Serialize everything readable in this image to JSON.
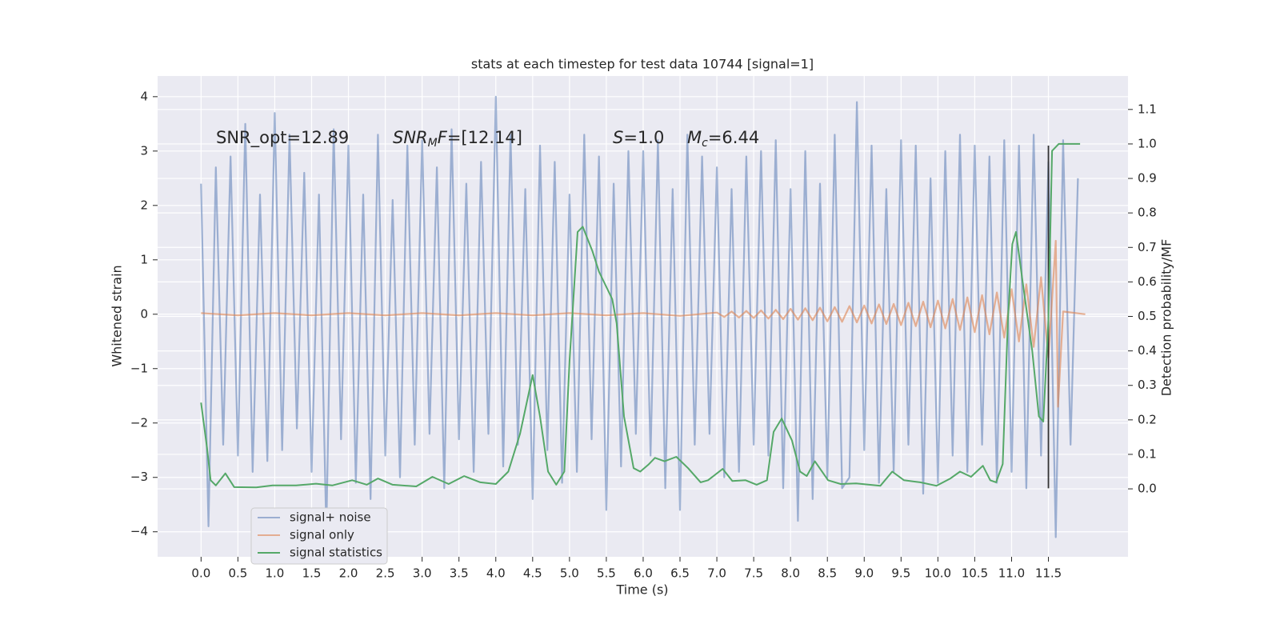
{
  "chart_data": {
    "type": "line",
    "title": "stats at each timestep for test data 10744 [signal=1]",
    "xlabel": "Time (s)",
    "ylabel": "Whitened strain",
    "y2label": "Detection probability/MF",
    "xlim": [
      -0.59,
      12.58
    ],
    "ylim": [
      -4.46,
      4.38
    ],
    "y2lim": [
      -0.197,
      1.197
    ],
    "xticks": [
      {
        "value": 0,
        "label": "0.0"
      },
      {
        "value": 0.5,
        "label": "0.5"
      },
      {
        "value": 1,
        "label": "1.0"
      },
      {
        "value": 1.5,
        "label": "1.5"
      },
      {
        "value": 2,
        "label": "2.0"
      },
      {
        "value": 2.5,
        "label": "2.5"
      },
      {
        "value": 3,
        "label": "3.0"
      },
      {
        "value": 3.5,
        "label": "3.5"
      },
      {
        "value": 4,
        "label": "4.0"
      },
      {
        "value": 4.5,
        "label": "4.5"
      },
      {
        "value": 5,
        "label": "5.0"
      },
      {
        "value": 5.5,
        "label": "5.5"
      },
      {
        "value": 6,
        "label": "6.0"
      },
      {
        "value": 6.5,
        "label": "6.5"
      },
      {
        "value": 7,
        "label": "7.0"
      },
      {
        "value": 7.5,
        "label": "7.5"
      },
      {
        "value": 8,
        "label": "8.0"
      },
      {
        "value": 8.5,
        "label": "8.5"
      },
      {
        "value": 9,
        "label": "9.0"
      },
      {
        "value": 9.5,
        "label": "9.5"
      },
      {
        "value": 10,
        "label": "10.0"
      },
      {
        "value": 10.5,
        "label": "10.5"
      },
      {
        "value": 11,
        "label": "11.0"
      },
      {
        "value": 11.5,
        "label": "11.5"
      }
    ],
    "yticks": [
      {
        "value": -4,
        "label": "−4"
      },
      {
        "value": -3,
        "label": "−3"
      },
      {
        "value": -2,
        "label": "−2"
      },
      {
        "value": -1,
        "label": "−1"
      },
      0,
      1,
      2,
      3,
      4
    ],
    "y2ticks": [
      {
        "value": 0,
        "label": "0.0"
      },
      {
        "value": 0.1,
        "label": "0.1"
      },
      {
        "value": 0.2,
        "label": "0.2"
      },
      {
        "value": 0.3,
        "label": "0.3"
      },
      {
        "value": 0.4,
        "label": "0.4"
      },
      {
        "value": 0.5,
        "label": "0.5"
      },
      {
        "value": 0.6,
        "label": "0.6"
      },
      {
        "value": 0.7,
        "label": "0.7"
      },
      {
        "value": 0.8,
        "label": "0.8"
      },
      {
        "value": 0.9,
        "label": "0.9"
      },
      {
        "value": 1,
        "label": "1.0"
      },
      {
        "value": 1.1,
        "label": "1.1"
      }
    ],
    "grid": true,
    "legend": "lower left",
    "series": [
      {
        "name": "signal+ noise",
        "color": "#4c72b0",
        "alpha": 0.5,
        "x": [
          0,
          0.1,
          0.2,
          0.3,
          0.4,
          0.5,
          0.6,
          0.7,
          0.8,
          0.9,
          1,
          1.1,
          1.2,
          1.3,
          1.4,
          1.5,
          1.6,
          1.7,
          1.8,
          1.9,
          2,
          2.1,
          2.2,
          2.3,
          2.4,
          2.5,
          2.6,
          2.7,
          2.8,
          2.9,
          3,
          3.1,
          3.2,
          3.3,
          3.4,
          3.5,
          3.6,
          3.7,
          3.8,
          3.9,
          4,
          4.1,
          4.2,
          4.3,
          4.4,
          4.5,
          4.6,
          4.7,
          4.8,
          4.9,
          5,
          5.1,
          5.2,
          5.3,
          5.4,
          5.5,
          5.6,
          5.7,
          5.8,
          5.9,
          6,
          6.1,
          6.2,
          6.3,
          6.4,
          6.5,
          6.6,
          6.7,
          6.8,
          6.9,
          7,
          7.1,
          7.2,
          7.3,
          7.4,
          7.5,
          7.6,
          7.7,
          7.8,
          7.9,
          8,
          8.1,
          8.2,
          8.3,
          8.4,
          8.5,
          8.6,
          8.7,
          8.8,
          8.9,
          9,
          9.1,
          9.2,
          9.3,
          9.4,
          9.5,
          9.6,
          9.7,
          9.8,
          9.9,
          10,
          10.1,
          10.2,
          10.3,
          10.4,
          10.5,
          10.6,
          10.7,
          10.8,
          10.9,
          11,
          11.1,
          11.2,
          11.3,
          11.4,
          11.5,
          11.6,
          11.7,
          11.8,
          11.9
        ],
        "values": [
          2.4,
          -3.9,
          2.7,
          -2.4,
          2.9,
          -2.6,
          3.5,
          -2.9,
          2.2,
          -2.7,
          3.7,
          -2.5,
          3.3,
          -2.1,
          2.6,
          -2.9,
          2.2,
          -4.0,
          3.4,
          -2.3,
          3.1,
          -3.1,
          2.2,
          -3.4,
          3.3,
          -2.6,
          2.1,
          -3.0,
          3.1,
          -2.4,
          3.2,
          -2.2,
          2.7,
          -3.2,
          3.4,
          -2.3,
          2.4,
          -2.9,
          2.8,
          -2.2,
          4.0,
          -2.8,
          3.3,
          -2.4,
          2.3,
          -3.4,
          3.1,
          -2.5,
          2.8,
          -3.1,
          2.2,
          -2.9,
          3.3,
          -2.3,
          2.9,
          -3.6,
          2.4,
          -2.8,
          3.0,
          -2.2,
          3.0,
          -2.6,
          3.2,
          -3.2,
          2.3,
          -3.6,
          3.3,
          -2.4,
          2.9,
          -2.2,
          2.7,
          -3.0,
          2.3,
          -2.9,
          2.9,
          -2.4,
          3.0,
          -2.6,
          3.2,
          -3.2,
          2.3,
          -3.8,
          3.0,
          -3.4,
          2.4,
          -3.0,
          3.3,
          -3.2,
          -3.0,
          3.9,
          -2.5,
          3.1,
          -3.1,
          2.3,
          -2.9,
          3.2,
          -2.4,
          3.1,
          -3.3,
          2.5,
          -3.1,
          3.0,
          -2.6,
          3.3,
          -2.9,
          3.1,
          -2.4,
          2.9,
          -3.1,
          3.2,
          -2.9,
          3.1,
          -3.2,
          3.3,
          -2.6,
          2.8,
          -4.1,
          3.2,
          -2.4,
          2.5
        ]
      },
      {
        "name": "signal only",
        "color": "#dd8452",
        "alpha": 0.6,
        "x": [
          0,
          0.5,
          1,
          1.5,
          2,
          2.5,
          3,
          3.5,
          4,
          4.5,
          5,
          5.5,
          6,
          6.5,
          7,
          7.1,
          7.2,
          7.3,
          7.4,
          7.5,
          7.6,
          7.7,
          7.8,
          7.9,
          8,
          8.1,
          8.2,
          8.3,
          8.4,
          8.5,
          8.6,
          8.7,
          8.8,
          8.9,
          9,
          9.1,
          9.2,
          9.3,
          9.4,
          9.5,
          9.6,
          9.7,
          9.8,
          9.9,
          10,
          10.1,
          10.2,
          10.3,
          10.4,
          10.5,
          10.6,
          10.7,
          10.8,
          10.9,
          11,
          11.1,
          11.2,
          11.3,
          11.4,
          11.5,
          11.6,
          11.63,
          11.7,
          12.0
        ],
        "values": [
          0.02,
          -0.02,
          0.02,
          -0.02,
          0.02,
          -0.02,
          0.02,
          -0.02,
          0.02,
          -0.02,
          0.02,
          -0.02,
          0.02,
          -0.03,
          0.03,
          -0.05,
          0.05,
          -0.06,
          0.06,
          -0.07,
          0.07,
          -0.08,
          0.08,
          -0.09,
          0.1,
          -0.1,
          0.11,
          -0.11,
          0.12,
          -0.13,
          0.13,
          -0.14,
          0.15,
          -0.15,
          0.16,
          -0.17,
          0.18,
          -0.18,
          0.19,
          -0.2,
          0.21,
          -0.22,
          0.23,
          -0.24,
          0.25,
          -0.26,
          0.28,
          -0.29,
          0.31,
          -0.33,
          0.35,
          -0.37,
          0.4,
          -0.43,
          0.46,
          -0.5,
          0.55,
          -0.6,
          0.68,
          -0.8,
          1.35,
          -1.7,
          0.05,
          0.0
        ]
      },
      {
        "name": "signal statistics",
        "color": "#55a868",
        "alpha": 1,
        "axis": "y2",
        "x": [
          0,
          0.08,
          0.13,
          0.2,
          0.33,
          0.45,
          0.75,
          0.97,
          1.29,
          1.56,
          1.78,
          2.05,
          2.25,
          2.4,
          2.6,
          2.92,
          3.14,
          3.36,
          3.57,
          3.79,
          4.0,
          4.17,
          4.33,
          4.5,
          4.6,
          4.71,
          4.82,
          4.93,
          5.0,
          5.11,
          5.18,
          5.31,
          5.4,
          5.58,
          5.64,
          5.74,
          5.87,
          5.96,
          6.07,
          6.16,
          6.29,
          6.45,
          6.61,
          6.78,
          6.88,
          7.08,
          7.21,
          7.39,
          7.54,
          7.68,
          7.77,
          7.88,
          8.02,
          8.13,
          8.22,
          8.33,
          8.51,
          8.68,
          8.89,
          9.22,
          9.38,
          9.54,
          9.76,
          9.98,
          10.17,
          10.3,
          10.45,
          10.61,
          10.71,
          10.79,
          10.88,
          10.95,
          11.01,
          11.06,
          11.15,
          11.28,
          11.37,
          11.43,
          11.5,
          11.55,
          11.64,
          11.93
        ],
        "values": [
          0.25,
          0.12,
          0.025,
          0.01,
          0.045,
          0.005,
          0.004,
          0.01,
          0.01,
          0.015,
          0.01,
          0.025,
          0.012,
          0.03,
          0.012,
          0.007,
          0.035,
          0.014,
          0.037,
          0.019,
          0.014,
          0.05,
          0.16,
          0.33,
          0.21,
          0.05,
          0.012,
          0.05,
          0.37,
          0.745,
          0.76,
          0.69,
          0.63,
          0.55,
          0.48,
          0.21,
          0.06,
          0.05,
          0.07,
          0.09,
          0.08,
          0.093,
          0.06,
          0.019,
          0.025,
          0.058,
          0.023,
          0.025,
          0.012,
          0.025,
          0.165,
          0.204,
          0.14,
          0.05,
          0.037,
          0.08,
          0.025,
          0.014,
          0.016,
          0.009,
          0.05,
          0.025,
          0.019,
          0.009,
          0.03,
          0.05,
          0.035,
          0.067,
          0.025,
          0.019,
          0.072,
          0.49,
          0.71,
          0.745,
          0.6,
          0.4,
          0.21,
          0.195,
          0.49,
          0.98,
          1.0,
          1.0
        ]
      }
    ],
    "vlines": [
      {
        "x": 11.5,
        "ymin": -3.2,
        "ymax": 3.1,
        "color": "#333333"
      }
    ],
    "annotations": [
      {
        "parts": [
          {
            "text": "SNR_opt=12.89"
          }
        ]
      },
      {
        "parts": [
          {
            "text": "SNR",
            "italic": true
          },
          {
            "text": "M",
            "italic": true,
            "sub": true
          },
          {
            "text": "F",
            "italic": true
          },
          {
            "text": "=[12.14]"
          }
        ]
      },
      {
        "parts": [
          {
            "text": "S",
            "italic": true
          },
          {
            "text": "=1.0"
          }
        ]
      },
      {
        "parts": [
          {
            "text": "M",
            "italic": true
          },
          {
            "text": "c",
            "italic": true,
            "sub": true
          },
          {
            "text": "=6.44"
          }
        ]
      }
    ]
  }
}
